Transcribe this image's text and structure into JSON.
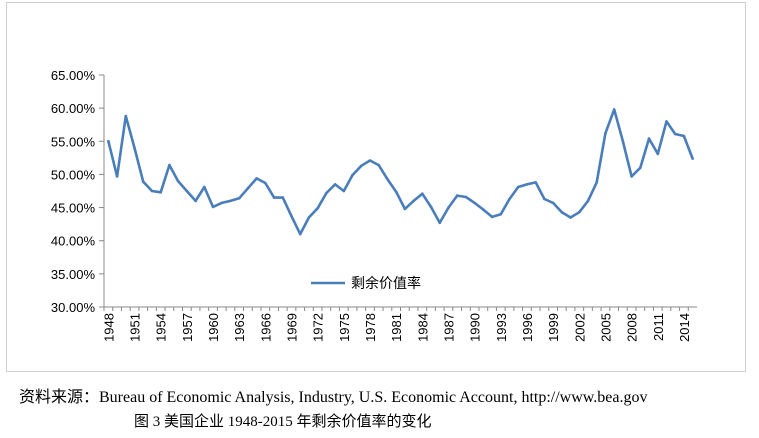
{
  "chart_data": {
    "type": "line",
    "title": "",
    "xlabel": "",
    "ylabel": "",
    "ylim": [
      30,
      65
    ],
    "y_step": 5,
    "y_format": "percent_2dp",
    "grid": false,
    "legend_position": "center",
    "x": [
      1948,
      1949,
      1950,
      1951,
      1952,
      1953,
      1954,
      1955,
      1956,
      1957,
      1958,
      1959,
      1960,
      1961,
      1962,
      1963,
      1964,
      1965,
      1966,
      1967,
      1968,
      1969,
      1970,
      1971,
      1972,
      1973,
      1974,
      1975,
      1976,
      1977,
      1978,
      1979,
      1980,
      1981,
      1982,
      1983,
      1984,
      1985,
      1986,
      1987,
      1988,
      1989,
      1990,
      1991,
      1992,
      1993,
      1994,
      1995,
      1996,
      1997,
      1998,
      1999,
      2000,
      2001,
      2002,
      2003,
      2004,
      2005,
      2006,
      2007,
      2008,
      2009,
      2010,
      2011,
      2012,
      2013,
      2014,
      2015
    ],
    "x_tick_labels": [
      "1948",
      "1951",
      "1954",
      "1957",
      "1960",
      "1963",
      "1966",
      "1969",
      "1972",
      "1975",
      "1978",
      "1981",
      "1984",
      "1987",
      "1990",
      "1993",
      "1996",
      "1999",
      "2002",
      "2005",
      "2008",
      "2011",
      "2014"
    ],
    "series": [
      {
        "name": "剩余价值率",
        "color": "#4a7ebb",
        "values": [
          55.0,
          49.7,
          58.8,
          54.0,
          48.9,
          47.5,
          47.3,
          51.4,
          49.0,
          47.5,
          46.0,
          48.1,
          45.1,
          45.7,
          46.0,
          46.4,
          47.9,
          49.4,
          48.7,
          46.5,
          46.5,
          43.7,
          41.0,
          43.5,
          44.9,
          47.2,
          48.5,
          47.5,
          49.9,
          51.3,
          52.1,
          51.4,
          49.3,
          47.4,
          44.8,
          46.0,
          47.1,
          45.1,
          42.7,
          45.0,
          46.8,
          46.6,
          45.7,
          44.7,
          43.6,
          44.0,
          46.3,
          48.1,
          48.5,
          48.8,
          46.3,
          45.7,
          44.3,
          43.5,
          44.3,
          46.0,
          48.8,
          56.2,
          59.8,
          55.0,
          49.7,
          51.0,
          55.4,
          53.1,
          58.0,
          56.1,
          55.8,
          52.4
        ]
      }
    ]
  },
  "footer": {
    "source": "资料来源：Bureau of Economic Analysis, Industry, U.S. Economic Account, http://www.bea.gov",
    "caption": "图 3  美国企业 1948-2015 年剩余价值率的变化"
  }
}
